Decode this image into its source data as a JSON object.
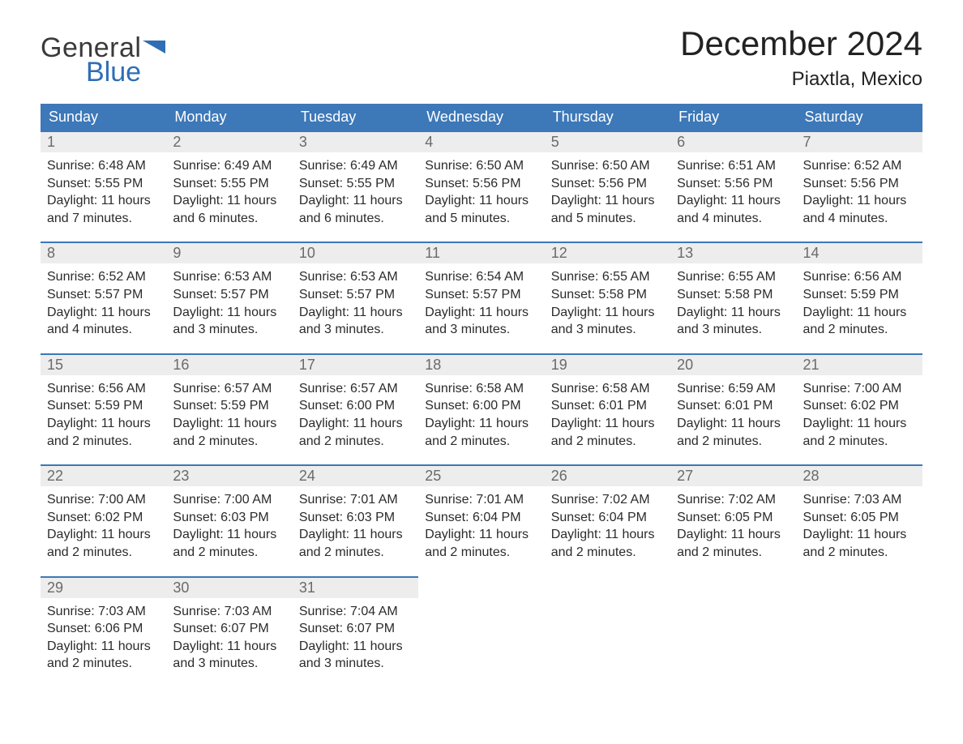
{
  "brand": {
    "line1": "General",
    "line2": "Blue",
    "accent_color": "#2f6eb5"
  },
  "title": "December 2024",
  "location": "Piaxtla, Mexico",
  "colors": {
    "header_bg": "#3d78b8",
    "header_text": "#ffffff",
    "daynum_bg": "#ededed",
    "daynum_text": "#6a6a6a",
    "cell_border": "#3d78b8",
    "body_text": "#2b2b2b",
    "page_bg": "#ffffff"
  },
  "typography": {
    "title_fontsize": 42,
    "location_fontsize": 24,
    "weekday_fontsize": 18,
    "daynum_fontsize": 18,
    "body_fontsize": 16,
    "font_family": "Arial"
  },
  "layout": {
    "columns": 7,
    "rows": 5,
    "first_weekday": "Sunday"
  },
  "weekdays": [
    "Sunday",
    "Monday",
    "Tuesday",
    "Wednesday",
    "Thursday",
    "Friday",
    "Saturday"
  ],
  "days": [
    {
      "n": 1,
      "sunrise": "6:48 AM",
      "sunset": "5:55 PM",
      "daylight": "11 hours and 7 minutes."
    },
    {
      "n": 2,
      "sunrise": "6:49 AM",
      "sunset": "5:55 PM",
      "daylight": "11 hours and 6 minutes."
    },
    {
      "n": 3,
      "sunrise": "6:49 AM",
      "sunset": "5:55 PM",
      "daylight": "11 hours and 6 minutes."
    },
    {
      "n": 4,
      "sunrise": "6:50 AM",
      "sunset": "5:56 PM",
      "daylight": "11 hours and 5 minutes."
    },
    {
      "n": 5,
      "sunrise": "6:50 AM",
      "sunset": "5:56 PM",
      "daylight": "11 hours and 5 minutes."
    },
    {
      "n": 6,
      "sunrise": "6:51 AM",
      "sunset": "5:56 PM",
      "daylight": "11 hours and 4 minutes."
    },
    {
      "n": 7,
      "sunrise": "6:52 AM",
      "sunset": "5:56 PM",
      "daylight": "11 hours and 4 minutes."
    },
    {
      "n": 8,
      "sunrise": "6:52 AM",
      "sunset": "5:57 PM",
      "daylight": "11 hours and 4 minutes."
    },
    {
      "n": 9,
      "sunrise": "6:53 AM",
      "sunset": "5:57 PM",
      "daylight": "11 hours and 3 minutes."
    },
    {
      "n": 10,
      "sunrise": "6:53 AM",
      "sunset": "5:57 PM",
      "daylight": "11 hours and 3 minutes."
    },
    {
      "n": 11,
      "sunrise": "6:54 AM",
      "sunset": "5:57 PM",
      "daylight": "11 hours and 3 minutes."
    },
    {
      "n": 12,
      "sunrise": "6:55 AM",
      "sunset": "5:58 PM",
      "daylight": "11 hours and 3 minutes."
    },
    {
      "n": 13,
      "sunrise": "6:55 AM",
      "sunset": "5:58 PM",
      "daylight": "11 hours and 3 minutes."
    },
    {
      "n": 14,
      "sunrise": "6:56 AM",
      "sunset": "5:59 PM",
      "daylight": "11 hours and 2 minutes."
    },
    {
      "n": 15,
      "sunrise": "6:56 AM",
      "sunset": "5:59 PM",
      "daylight": "11 hours and 2 minutes."
    },
    {
      "n": 16,
      "sunrise": "6:57 AM",
      "sunset": "5:59 PM",
      "daylight": "11 hours and 2 minutes."
    },
    {
      "n": 17,
      "sunrise": "6:57 AM",
      "sunset": "6:00 PM",
      "daylight": "11 hours and 2 minutes."
    },
    {
      "n": 18,
      "sunrise": "6:58 AM",
      "sunset": "6:00 PM",
      "daylight": "11 hours and 2 minutes."
    },
    {
      "n": 19,
      "sunrise": "6:58 AM",
      "sunset": "6:01 PM",
      "daylight": "11 hours and 2 minutes."
    },
    {
      "n": 20,
      "sunrise": "6:59 AM",
      "sunset": "6:01 PM",
      "daylight": "11 hours and 2 minutes."
    },
    {
      "n": 21,
      "sunrise": "7:00 AM",
      "sunset": "6:02 PM",
      "daylight": "11 hours and 2 minutes."
    },
    {
      "n": 22,
      "sunrise": "7:00 AM",
      "sunset": "6:02 PM",
      "daylight": "11 hours and 2 minutes."
    },
    {
      "n": 23,
      "sunrise": "7:00 AM",
      "sunset": "6:03 PM",
      "daylight": "11 hours and 2 minutes."
    },
    {
      "n": 24,
      "sunrise": "7:01 AM",
      "sunset": "6:03 PM",
      "daylight": "11 hours and 2 minutes."
    },
    {
      "n": 25,
      "sunrise": "7:01 AM",
      "sunset": "6:04 PM",
      "daylight": "11 hours and 2 minutes."
    },
    {
      "n": 26,
      "sunrise": "7:02 AM",
      "sunset": "6:04 PM",
      "daylight": "11 hours and 2 minutes."
    },
    {
      "n": 27,
      "sunrise": "7:02 AM",
      "sunset": "6:05 PM",
      "daylight": "11 hours and 2 minutes."
    },
    {
      "n": 28,
      "sunrise": "7:03 AM",
      "sunset": "6:05 PM",
      "daylight": "11 hours and 2 minutes."
    },
    {
      "n": 29,
      "sunrise": "7:03 AM",
      "sunset": "6:06 PM",
      "daylight": "11 hours and 2 minutes."
    },
    {
      "n": 30,
      "sunrise": "7:03 AM",
      "sunset": "6:07 PM",
      "daylight": "11 hours and 3 minutes."
    },
    {
      "n": 31,
      "sunrise": "7:04 AM",
      "sunset": "6:07 PM",
      "daylight": "11 hours and 3 minutes."
    }
  ],
  "labels": {
    "sunrise": "Sunrise:",
    "sunset": "Sunset:",
    "daylight": "Daylight:"
  }
}
